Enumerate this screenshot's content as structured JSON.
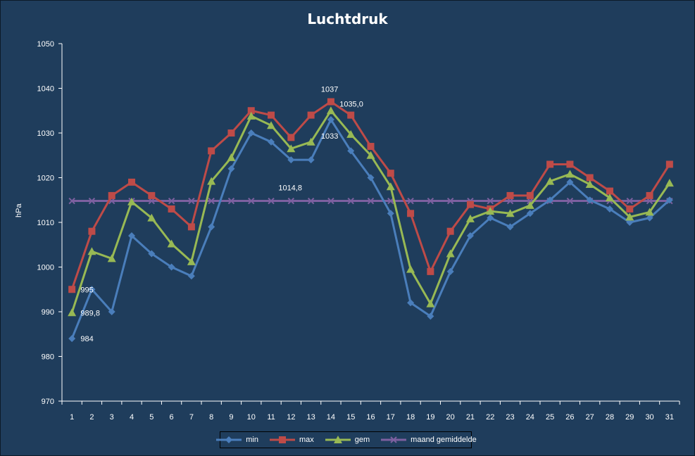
{
  "chart_data": {
    "type": "line",
    "title": "Luchtdruk",
    "ylabel": "hPa",
    "xlabel": "",
    "ylim": [
      970,
      1050
    ],
    "yticks": [
      970,
      980,
      990,
      1000,
      1010,
      1020,
      1030,
      1040,
      1050
    ],
    "grid": false,
    "legend_position": "bottom",
    "x": [
      1,
      2,
      3,
      4,
      5,
      6,
      7,
      8,
      9,
      10,
      11,
      12,
      13,
      14,
      15,
      16,
      17,
      18,
      19,
      20,
      21,
      22,
      23,
      24,
      25,
      26,
      27,
      28,
      29,
      30,
      31
    ],
    "series": [
      {
        "name": "min",
        "color": "#4a7ebb",
        "marker": "diamond",
        "values": [
          984,
          995,
          990,
          1007,
          1003,
          1000,
          998,
          1009,
          1022,
          1030,
          1028,
          1024,
          1024,
          1033,
          1026,
          1020,
          1012,
          992,
          989,
          999,
          1007,
          1011,
          1009,
          1012,
          1015,
          1019,
          1015,
          1013,
          1010,
          1011,
          1015
        ]
      },
      {
        "name": "max",
        "color": "#be4b48",
        "marker": "square",
        "values": [
          995,
          1008,
          1016,
          1019,
          1016,
          1013,
          1009,
          1026,
          1030,
          1035,
          1034,
          1029,
          1034,
          1037,
          1034,
          1027,
          1021,
          1012,
          999,
          1008,
          1014,
          1013,
          1016,
          1016,
          1023,
          1023,
          1020,
          1017,
          1013,
          1016,
          1023
        ]
      },
      {
        "name": "gem",
        "color": "#98b954",
        "marker": "triangle",
        "values": [
          989.8,
          1003.5,
          1001.9,
          1014.6,
          1011.0,
          1005.2,
          1001.2,
          1019.2,
          1024.5,
          1033.8,
          1031.7,
          1026.5,
          1028.0,
          1035.0,
          1029.7,
          1025.0,
          1018.0,
          999.5,
          991.8,
          1003.0,
          1010.8,
          1012.5,
          1012.0,
          1013.8,
          1019.2,
          1020.8,
          1018.5,
          1015.5,
          1011.2,
          1012.3,
          1018.8
        ]
      },
      {
        "name": "maand gemiddelde",
        "color": "#7d60a0",
        "marker": "x",
        "values": [
          1014.8,
          1014.8,
          1014.8,
          1014.8,
          1014.8,
          1014.8,
          1014.8,
          1014.8,
          1014.8,
          1014.8,
          1014.8,
          1014.8,
          1014.8,
          1014.8,
          1014.8,
          1014.8,
          1014.8,
          1014.8,
          1014.8,
          1014.8,
          1014.8,
          1014.8,
          1014.8,
          1014.8,
          1014.8,
          1014.8,
          1014.8,
          1014.8,
          1014.8,
          1014.8,
          1014.8
        ]
      }
    ],
    "annotations": [
      {
        "x": 2,
        "y": 995,
        "text": "995"
      },
      {
        "x": 2,
        "y": 989.8,
        "text": "989,8"
      },
      {
        "x": 2,
        "y": 984,
        "text": "984"
      },
      {
        "x": 14,
        "y": 1037,
        "text": "1037"
      },
      {
        "x": 15,
        "y": 1035,
        "text": "1035,0"
      },
      {
        "x": 14,
        "y": 1033,
        "text": "1033"
      },
      {
        "x": 12,
        "y": 1014.8,
        "text": "1014,8"
      }
    ]
  },
  "colors": {
    "background": "#1f3d5c",
    "axis": "#ffffff",
    "text": "#ffffff"
  }
}
